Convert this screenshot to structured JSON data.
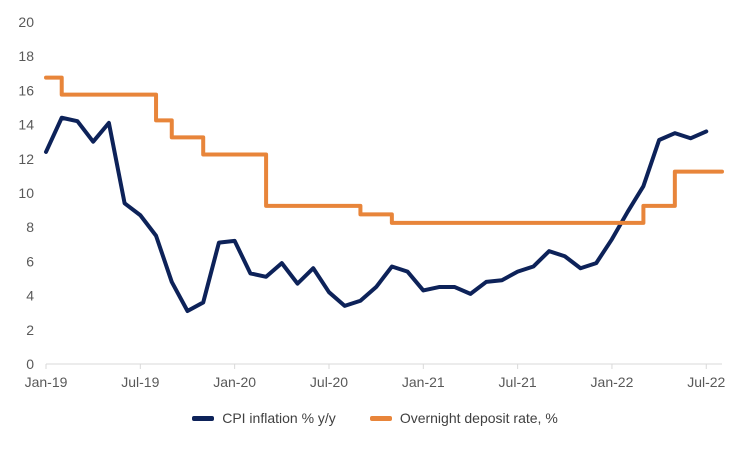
{
  "chart_data": {
    "type": "line",
    "title": "",
    "xlabel": "",
    "ylabel": "",
    "ylim": [
      0,
      20
    ],
    "yticks": [
      0,
      2,
      4,
      6,
      8,
      10,
      12,
      14,
      16,
      18,
      20
    ],
    "xtick_labels": [
      "Jan-19",
      "Jul-19",
      "Jan-20",
      "Jul-20",
      "Jan-21",
      "Jul-21",
      "Jan-22",
      "Jul-22"
    ],
    "grid": "none",
    "legend_position": "bottom",
    "months": [
      "Jan-19",
      "Feb-19",
      "Mar-19",
      "Apr-19",
      "May-19",
      "Jun-19",
      "Jul-19",
      "Aug-19",
      "Sep-19",
      "Oct-19",
      "Nov-19",
      "Dec-19",
      "Jan-20",
      "Feb-20",
      "Mar-20",
      "Apr-20",
      "May-20",
      "Jun-20",
      "Jul-20",
      "Aug-20",
      "Sep-20",
      "Oct-20",
      "Nov-20",
      "Dec-20",
      "Jan-21",
      "Feb-21",
      "Mar-21",
      "Apr-21",
      "May-21",
      "Jun-21",
      "Jul-21",
      "Aug-21",
      "Sep-21",
      "Oct-21",
      "Nov-21",
      "Dec-21",
      "Jan-22",
      "Feb-22",
      "Mar-22",
      "Apr-22",
      "May-22",
      "Jun-22",
      "Jul-22",
      "Aug-22"
    ],
    "series": [
      {
        "name": "CPI inflation % y/y",
        "color": "#0d2259",
        "values": [
          12.4,
          14.4,
          14.2,
          13.0,
          14.1,
          9.4,
          8.7,
          7.5,
          4.8,
          3.1,
          3.6,
          7.1,
          7.2,
          5.3,
          5.1,
          5.9,
          4.7,
          5.6,
          4.2,
          3.4,
          3.7,
          4.5,
          5.7,
          5.4,
          4.3,
          4.5,
          4.5,
          4.1,
          4.8,
          4.9,
          5.4,
          5.7,
          6.6,
          6.3,
          5.6,
          5.9,
          7.3,
          8.9,
          10.4,
          13.1,
          13.5,
          13.2,
          13.6,
          null
        ]
      },
      {
        "name": "Overnight deposit rate, %",
        "color": "#e8853a",
        "values": [
          16.75,
          15.75,
          15.75,
          15.75,
          15.75,
          15.75,
          15.75,
          14.25,
          13.25,
          13.25,
          12.25,
          12.25,
          12.25,
          12.25,
          9.25,
          9.25,
          9.25,
          9.25,
          9.25,
          9.25,
          8.75,
          8.75,
          8.25,
          8.25,
          8.25,
          8.25,
          8.25,
          8.25,
          8.25,
          8.25,
          8.25,
          8.25,
          8.25,
          8.25,
          8.25,
          8.25,
          8.25,
          8.25,
          9.25,
          9.25,
          11.25,
          11.25,
          11.25,
          11.25
        ]
      }
    ]
  }
}
